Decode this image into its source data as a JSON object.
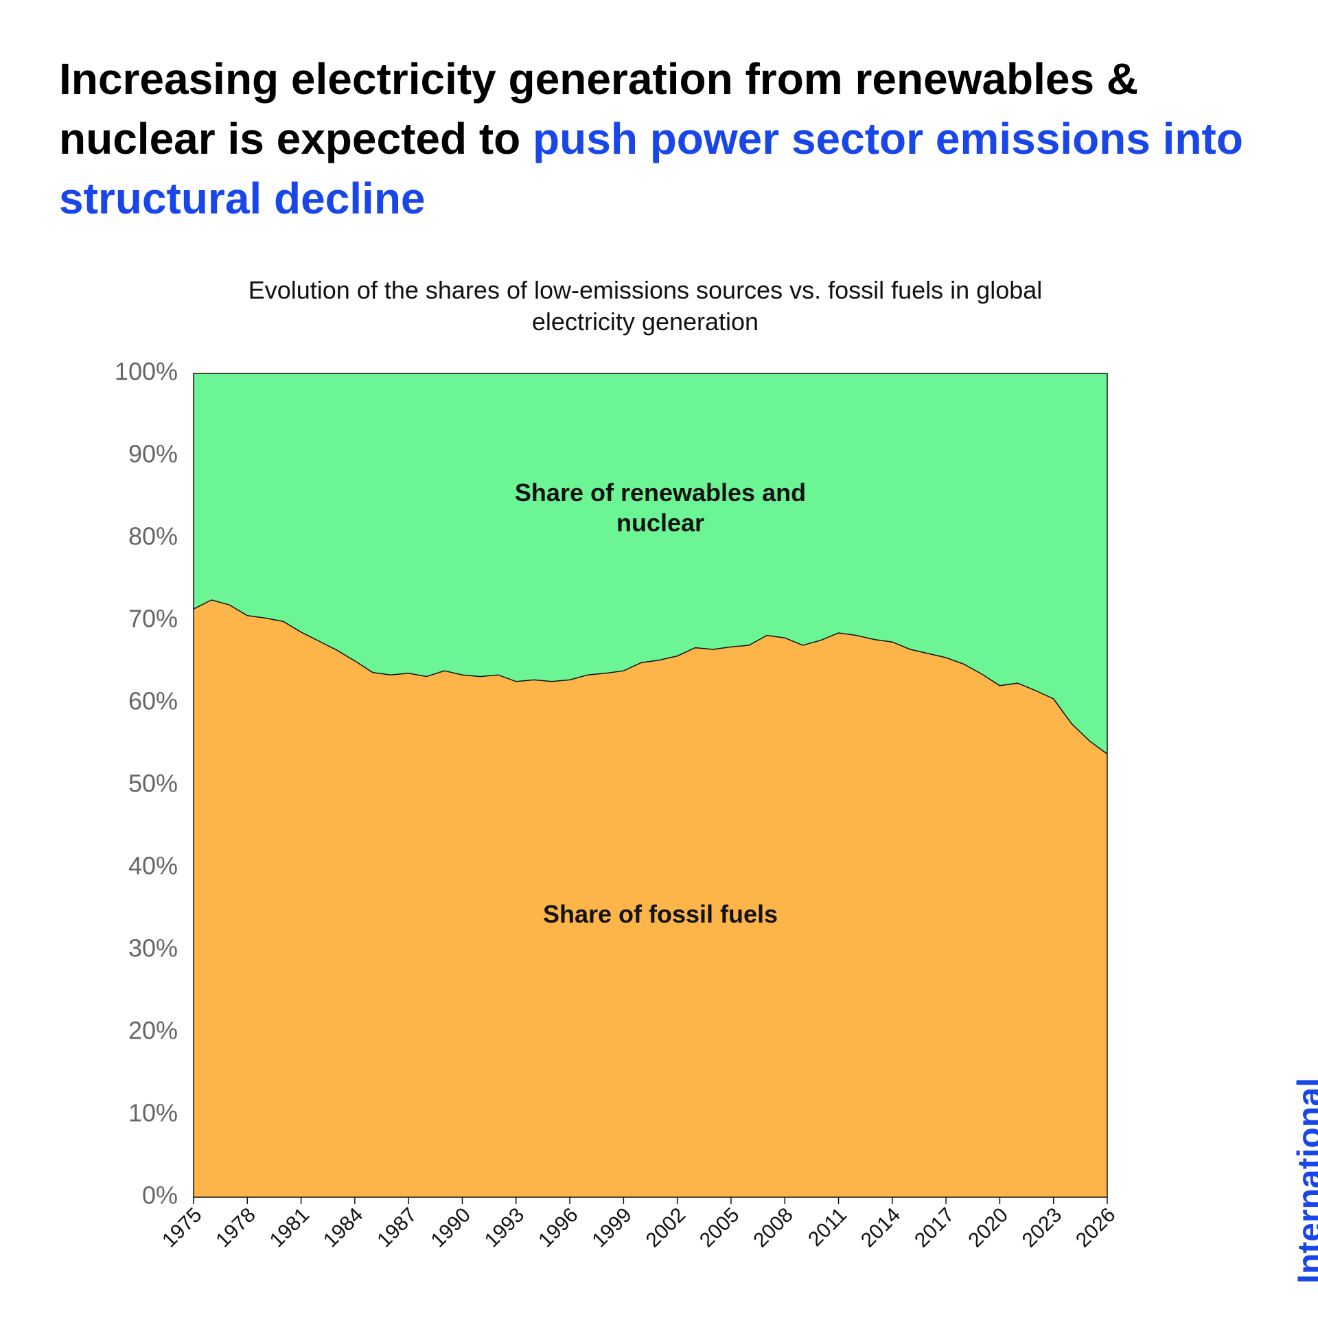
{
  "chart_data": {
    "type": "area",
    "title": "Increasing electricity generation from renewables & nuclear is expected to",
    "title_highlight": "push power sector emissions into structural decline",
    "subtitle": "Evolution of the shares of low-emissions sources vs. fossil fuels in global electricity generation",
    "source": "International Energy Agency",
    "stacked": true,
    "x": [
      1975,
      1976,
      1977,
      1978,
      1979,
      1980,
      1981,
      1982,
      1983,
      1984,
      1985,
      1986,
      1987,
      1988,
      1989,
      1990,
      1991,
      1992,
      1993,
      1994,
      1995,
      1996,
      1997,
      1998,
      1999,
      2000,
      2001,
      2002,
      2003,
      2004,
      2005,
      2006,
      2007,
      2008,
      2009,
      2010,
      2011,
      2012,
      2013,
      2014,
      2015,
      2016,
      2017,
      2018,
      2019,
      2020,
      2021,
      2022,
      2023,
      2024,
      2025,
      2026
    ],
    "xlim": [
      1975,
      2026
    ],
    "xticks": [
      1975,
      1978,
      1981,
      1984,
      1987,
      1990,
      1993,
      1996,
      1999,
      2002,
      2005,
      2008,
      2011,
      2014,
      2017,
      2020,
      2023,
      2026
    ],
    "ylim": [
      0,
      100
    ],
    "yticks": [
      {
        "value": 0,
        "label": "0%"
      },
      {
        "value": 10,
        "label": "10%"
      },
      {
        "value": 20,
        "label": "20%"
      },
      {
        "value": 30,
        "label": "30%"
      },
      {
        "value": 40,
        "label": "40%"
      },
      {
        "value": 50,
        "label": "50%"
      },
      {
        "value": 60,
        "label": "60%"
      },
      {
        "value": 70,
        "label": "70%"
      },
      {
        "value": 80,
        "label": "80%"
      },
      {
        "value": 90,
        "label": "90%"
      },
      {
        "value": 100,
        "label": "100%"
      }
    ],
    "series": [
      {
        "name": "Share of fossil fuels",
        "color": "#fdb54a",
        "values": [
          71.4,
          72.5,
          71.9,
          70.6,
          70.3,
          69.9,
          68.6,
          67.5,
          66.4,
          65.1,
          63.7,
          63.4,
          63.6,
          63.2,
          63.9,
          63.4,
          63.2,
          63.4,
          62.6,
          62.8,
          62.6,
          62.8,
          63.4,
          63.6,
          63.9,
          64.9,
          65.2,
          65.7,
          66.7,
          66.5,
          66.8,
          67.0,
          68.2,
          67.9,
          67.0,
          67.6,
          68.5,
          68.2,
          67.7,
          67.4,
          66.5,
          66.0,
          65.5,
          64.7,
          63.5,
          62.1,
          62.4,
          61.5,
          60.5,
          57.5,
          55.4,
          53.8
        ]
      },
      {
        "name": "Share of renewables and nuclear",
        "color": "#6cf594",
        "values": [
          28.6,
          27.5,
          28.1,
          29.4,
          29.7,
          30.1,
          31.4,
          32.5,
          33.6,
          34.9,
          36.3,
          36.6,
          36.4,
          36.8,
          36.1,
          36.6,
          36.8,
          36.6,
          37.4,
          37.2,
          37.4,
          37.2,
          36.6,
          36.4,
          36.1,
          35.1,
          34.8,
          34.3,
          33.3,
          33.5,
          33.2,
          33.0,
          31.8,
          32.1,
          33.0,
          32.4,
          31.5,
          31.8,
          32.3,
          32.6,
          33.5,
          34.0,
          34.5,
          35.3,
          36.5,
          37.9,
          37.6,
          38.5,
          39.5,
          42.5,
          44.6,
          46.2
        ]
      }
    ]
  }
}
